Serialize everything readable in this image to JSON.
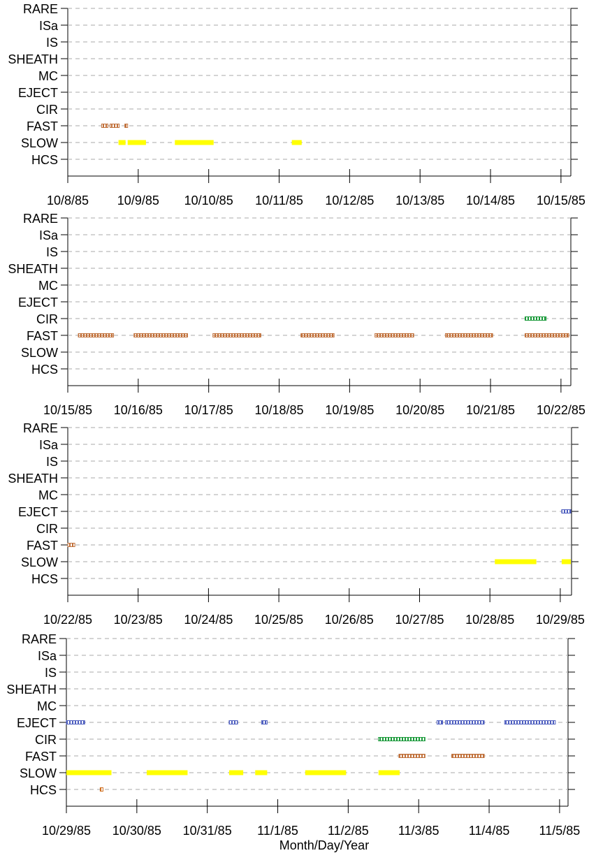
{
  "chart_data": [
    {
      "type": "timeline",
      "xlim": [
        0,
        7.14
      ],
      "xticks": [
        {
          "value": 0,
          "label": "10/8/85"
        },
        {
          "value": 1,
          "label": "10/9/85"
        },
        {
          "value": 2,
          "label": "10/10/85"
        },
        {
          "value": 3,
          "label": "10/11/85"
        },
        {
          "value": 4,
          "label": "10/12/85"
        },
        {
          "value": 5,
          "label": "10/13/85"
        },
        {
          "value": 6,
          "label": "10/14/85"
        },
        {
          "value": 7,
          "label": "10/15/85"
        }
      ],
      "rows": [
        {
          "label": "RARE",
          "intervals": []
        },
        {
          "label": "ISa",
          "intervals": []
        },
        {
          "label": "IS",
          "intervals": []
        },
        {
          "label": "SHEATH",
          "intervals": []
        },
        {
          "label": "MC",
          "intervals": []
        },
        {
          "label": "EJECT",
          "intervals": []
        },
        {
          "label": "CIR",
          "intervals": []
        },
        {
          "label": "FAST",
          "style": "boxes",
          "color": "#c0703a",
          "intervals": [
            [
              0.48,
              0.57
            ],
            [
              0.6,
              0.73
            ],
            [
              0.81,
              0.85
            ]
          ]
        },
        {
          "label": "SLOW",
          "style": "bar",
          "color": "#ffff00",
          "intervals": [
            [
              0.72,
              0.82
            ],
            [
              0.85,
              1.11
            ],
            [
              1.52,
              2.07
            ],
            [
              3.18,
              3.32
            ]
          ]
        },
        {
          "label": "HCS",
          "intervals": []
        }
      ]
    },
    {
      "type": "timeline",
      "xlim": [
        0,
        7.14
      ],
      "xticks": [
        {
          "value": 0,
          "label": "10/15/85"
        },
        {
          "value": 1,
          "label": "10/16/85"
        },
        {
          "value": 2,
          "label": "10/17/85"
        },
        {
          "value": 3,
          "label": "10/18/85"
        },
        {
          "value": 4,
          "label": "10/19/85"
        },
        {
          "value": 5,
          "label": "10/20/85"
        },
        {
          "value": 6,
          "label": "10/21/85"
        },
        {
          "value": 7,
          "label": "10/22/85"
        }
      ],
      "rows": [
        {
          "label": "RARE",
          "intervals": []
        },
        {
          "label": "ISa",
          "intervals": []
        },
        {
          "label": "IS",
          "intervals": []
        },
        {
          "label": "SHEATH",
          "intervals": []
        },
        {
          "label": "MC",
          "intervals": []
        },
        {
          "label": "EJECT",
          "intervals": []
        },
        {
          "label": "CIR",
          "style": "boxes",
          "color": "#1a9a3a",
          "intervals": [
            [
              6.49,
              6.79
            ]
          ]
        },
        {
          "label": "FAST",
          "style": "boxes",
          "color": "#c0703a",
          "intervals": [
            [
              0.15,
              0.65
            ],
            [
              0.94,
              1.7
            ],
            [
              2.06,
              2.74
            ],
            [
              3.31,
              3.78
            ],
            [
              4.36,
              4.91
            ],
            [
              5.36,
              6.03
            ],
            [
              6.49,
              7.11
            ]
          ]
        },
        {
          "label": "SLOW",
          "intervals": []
        },
        {
          "label": "HCS",
          "intervals": []
        }
      ]
    },
    {
      "type": "timeline",
      "xlim": [
        0,
        7.16
      ],
      "xticks": [
        {
          "value": 0,
          "label": "10/22/85"
        },
        {
          "value": 1,
          "label": "10/23/85"
        },
        {
          "value": 2,
          "label": "10/24/85"
        },
        {
          "value": 3,
          "label": "10/25/85"
        },
        {
          "value": 4,
          "label": "10/26/85"
        },
        {
          "value": 5,
          "label": "10/27/85"
        },
        {
          "value": 6,
          "label": "10/28/85"
        },
        {
          "value": 7,
          "label": "10/29/85"
        }
      ],
      "rows": [
        {
          "label": "RARE",
          "intervals": []
        },
        {
          "label": "ISa",
          "intervals": []
        },
        {
          "label": "IS",
          "intervals": []
        },
        {
          "label": "SHEATH",
          "intervals": []
        },
        {
          "label": "MC",
          "intervals": []
        },
        {
          "label": "EJECT",
          "style": "boxes",
          "color": "#5060c0",
          "intervals": [
            [
              7.02,
              7.15
            ]
          ]
        },
        {
          "label": "CIR",
          "intervals": []
        },
        {
          "label": "FAST",
          "style": "boxes",
          "color": "#c0703a",
          "intervals": [
            [
              0,
              0.1
            ]
          ]
        },
        {
          "label": "SLOW",
          "style": "bar",
          "color": "#ffff00",
          "intervals": [
            [
              6.07,
              6.66
            ],
            [
              7.02,
              7.15
            ]
          ]
        },
        {
          "label": "HCS",
          "intervals": []
        }
      ]
    },
    {
      "type": "timeline",
      "xlim": [
        0,
        7.12
      ],
      "xlabel": "Month/Day/Year",
      "xticks": [
        {
          "value": 0,
          "label": "10/29/85"
        },
        {
          "value": 1,
          "label": "10/30/85"
        },
        {
          "value": 2,
          "label": "10/31/85"
        },
        {
          "value": 3,
          "label": "11/1/85"
        },
        {
          "value": 4,
          "label": "11/2/85"
        },
        {
          "value": 5,
          "label": "11/3/85"
        },
        {
          "value": 6,
          "label": "11/4/85"
        },
        {
          "value": 7,
          "label": "11/5/85"
        }
      ],
      "rows": [
        {
          "label": "RARE",
          "intervals": []
        },
        {
          "label": "ISa",
          "intervals": []
        },
        {
          "label": "IS",
          "intervals": []
        },
        {
          "label": "SHEATH",
          "intervals": []
        },
        {
          "label": "MC",
          "intervals": []
        },
        {
          "label": "EJECT",
          "style": "boxes",
          "color": "#5060c0",
          "intervals": [
            [
              0,
              0.26
            ],
            [
              2.31,
              2.43
            ],
            [
              2.77,
              2.85
            ],
            [
              5.26,
              5.34
            ],
            [
              5.38,
              5.93
            ],
            [
              6.22,
              6.94
            ]
          ]
        },
        {
          "label": "CIR",
          "style": "boxes",
          "color": "#1a9a3a",
          "intervals": [
            [
              4.43,
              5.09
            ]
          ]
        },
        {
          "label": "FAST",
          "style": "boxes",
          "color": "#c0703a",
          "intervals": [
            [
              4.72,
              5.09
            ],
            [
              5.47,
              5.93
            ]
          ]
        },
        {
          "label": "SLOW",
          "style": "bar",
          "color": "#ffff00",
          "intervals": [
            [
              0,
              0.64
            ],
            [
              1.14,
              1.72
            ],
            [
              2.31,
              2.51
            ],
            [
              2.68,
              2.85
            ],
            [
              3.39,
              3.97
            ],
            [
              4.43,
              4.73
            ]
          ]
        },
        {
          "label": "HCS",
          "style": "boxes",
          "color": "#d07020",
          "intervals": [
            [
              0.48,
              0.52
            ]
          ]
        }
      ]
    }
  ]
}
